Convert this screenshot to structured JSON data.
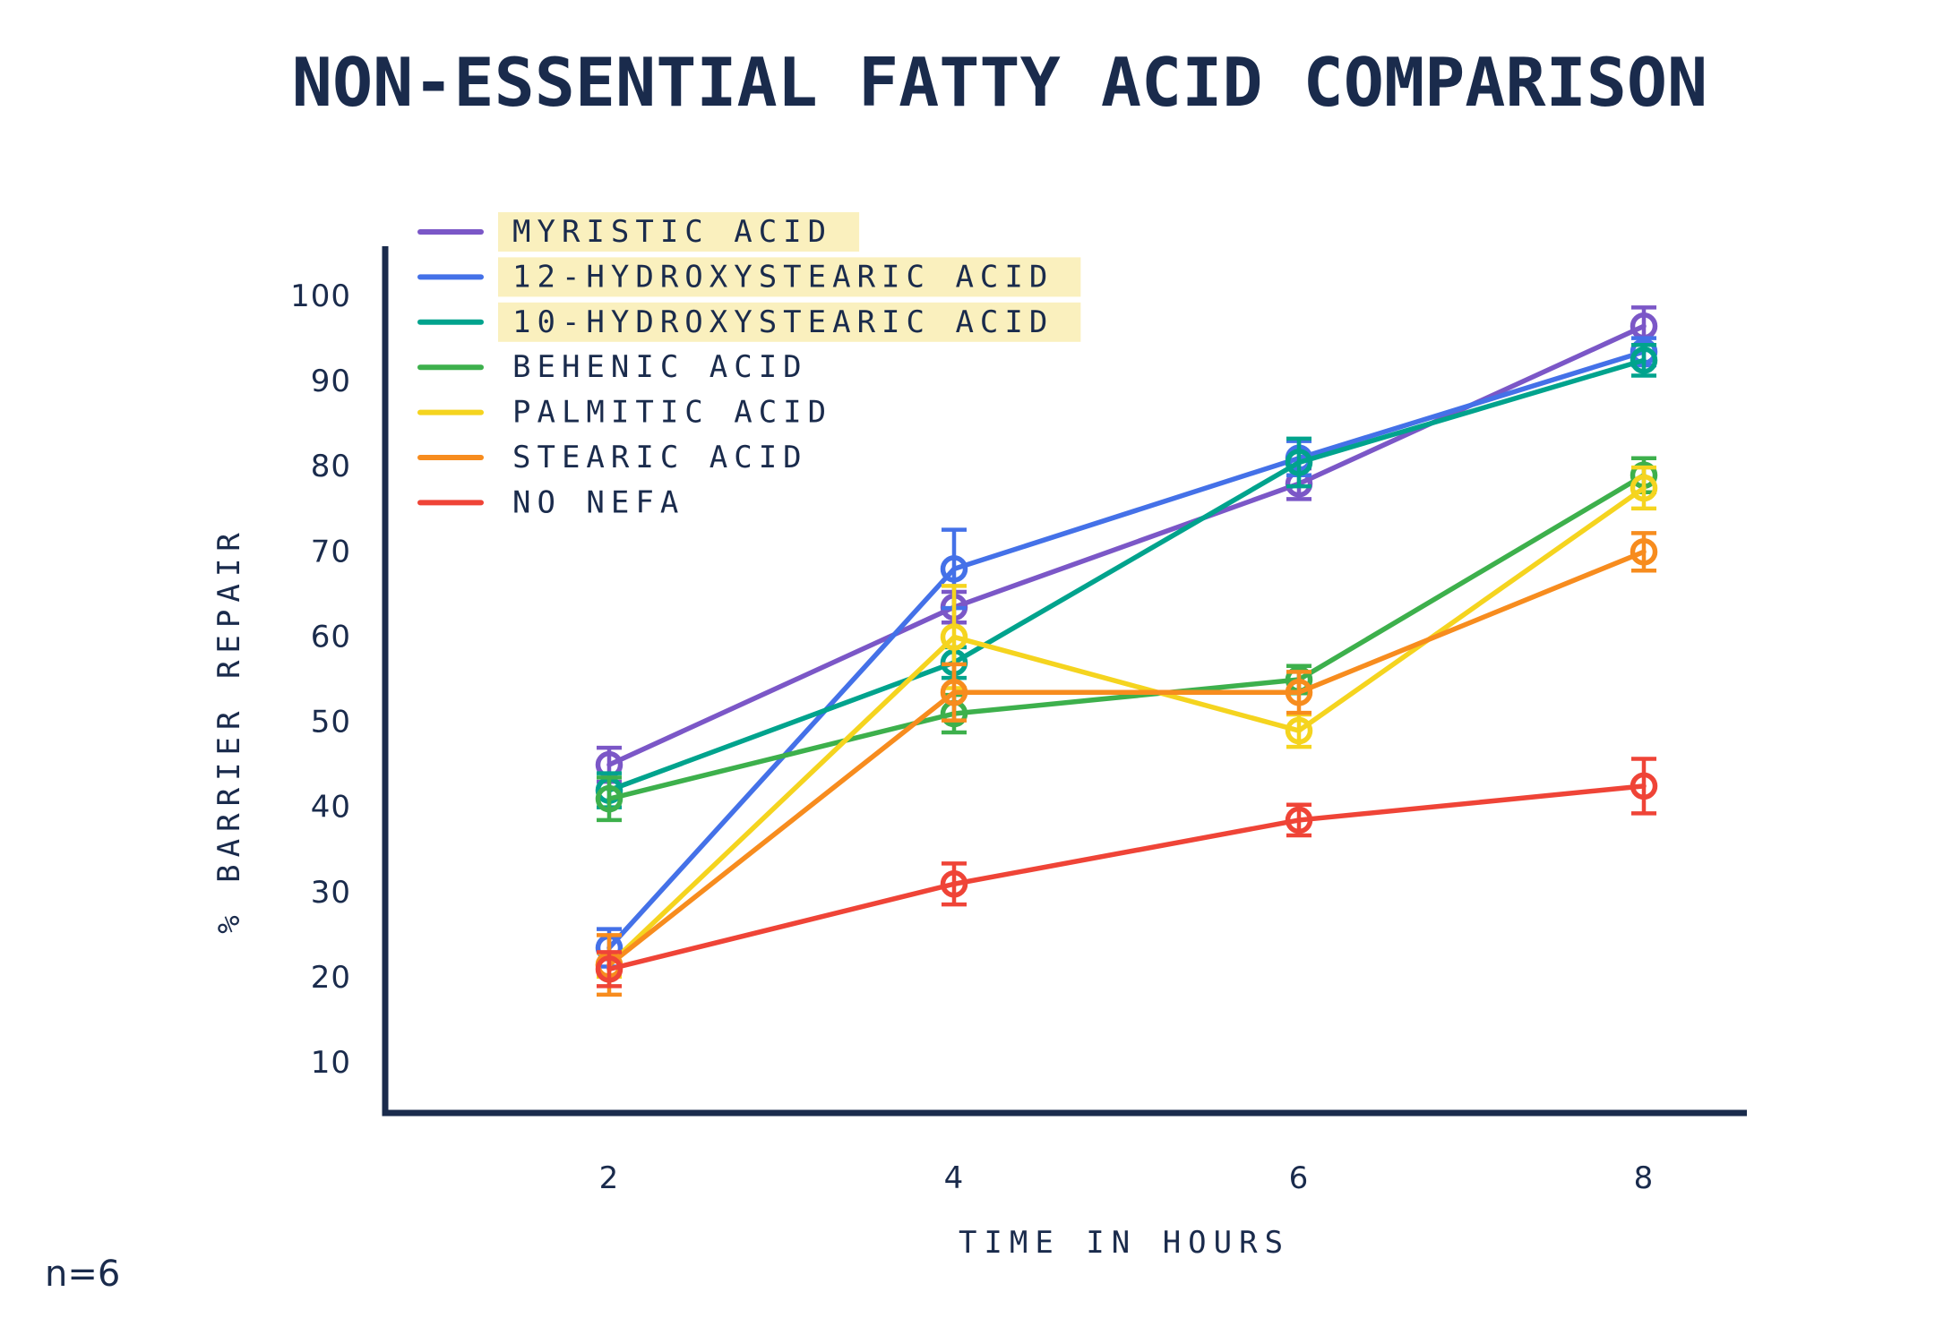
{
  "title": "NON-ESSENTIAL FATTY ACID COMPARISON",
  "annotation": "n=6",
  "colors": {
    "text": "#1a2b4c",
    "background": "#ffffff",
    "legend_highlight": "#faf0be"
  },
  "chart_data": {
    "type": "line",
    "title": "NON-ESSENTIAL FATTY ACID COMPARISON",
    "xlabel": "TIME IN HOURS",
    "ylabel": "% BARRIER REPAIR",
    "x": [
      2,
      4,
      6,
      8
    ],
    "x_tick_labels": [
      "2",
      "4",
      "6",
      "8"
    ],
    "y_ticks": [
      10,
      20,
      30,
      40,
      50,
      60,
      70,
      80,
      90,
      100
    ],
    "xlim": [
      0.7,
      8.6
    ],
    "ylim": [
      4,
      106
    ],
    "grid": false,
    "legend_position": "upper-left-inside",
    "marker": "open-circle",
    "error_bars": true,
    "sample_note": "n=6",
    "series": [
      {
        "name": "MYRISTIC ACID",
        "color": "#7b57c7",
        "highlighted": true,
        "values": [
          45,
          63.5,
          78,
          96.5
        ],
        "errors": [
          2.0,
          1.8,
          1.8,
          2.2
        ]
      },
      {
        "name": "12-HYDROXYSTEARIC ACID",
        "color": "#4471e8",
        "highlighted": true,
        "values": [
          23.5,
          68,
          81,
          93.5
        ],
        "errors": [
          2.2,
          4.6,
          2.0,
          1.6
        ]
      },
      {
        "name": "10-HYDROXYSTEARIC ACID",
        "color": "#00a38d",
        "highlighted": true,
        "values": [
          42,
          57,
          80.5,
          92.5
        ],
        "errors": [
          2.0,
          1.8,
          2.8,
          1.8
        ]
      },
      {
        "name": "BEHENIC ACID",
        "color": "#3db04c",
        "highlighted": false,
        "values": [
          41,
          51,
          55,
          79
        ],
        "errors": [
          2.5,
          2.2,
          1.6,
          2.0
        ]
      },
      {
        "name": "PALMITIC ACID",
        "color": "#f5d41f",
        "highlighted": false,
        "values": [
          21.5,
          60,
          49,
          77.5
        ],
        "errors": [
          1.4,
          6.0,
          1.9,
          2.4
        ]
      },
      {
        "name": "STEARIC ACID",
        "color": "#f78c1e",
        "highlighted": false,
        "values": [
          21.5,
          53.5,
          53.5,
          70
        ],
        "errors": [
          3.5,
          3.3,
          2.4,
          2.2
        ]
      },
      {
        "name": "NO NEFA",
        "color": "#ef4437",
        "highlighted": false,
        "values": [
          21,
          31,
          38.5,
          42.5
        ],
        "errors": [
          2.0,
          2.4,
          1.8,
          3.2
        ]
      }
    ]
  }
}
